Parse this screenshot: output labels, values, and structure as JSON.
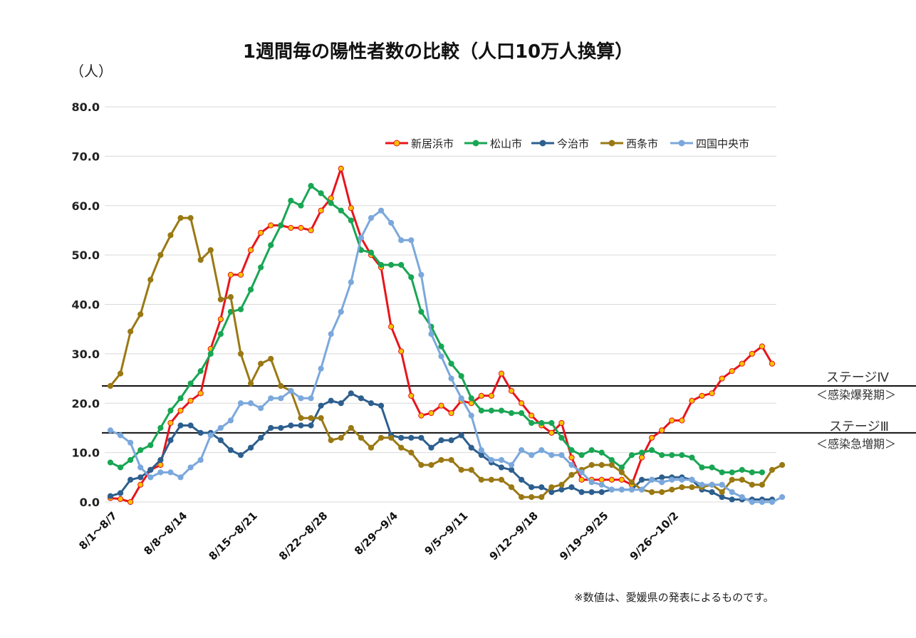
{
  "page": {
    "title": "1週間毎の陽性者数の比較（人口10万人換算）",
    "unit_label": "（人）",
    "footnote": "※数値は、愛媛県の発表によるものです。"
  },
  "stages": [
    {
      "label": "ステージⅣ",
      "sub": "＜感染爆発期＞",
      "value": 23.5
    },
    {
      "label": "ステージⅢ",
      "sub": "＜感染急増期＞",
      "value": 14.0
    }
  ],
  "chart_data": {
    "type": "line",
    "title": "1週間毎の陽性者数の比較（人口10万人換算）",
    "ylabel": "（人）",
    "ylim": [
      0,
      80
    ],
    "yticks": [
      "0.0",
      "10.0",
      "20.0",
      "30.0",
      "40.0",
      "50.0",
      "60.0",
      "70.0",
      "80.0"
    ],
    "x_tick_labels": [
      "8/1～8/7",
      "8/8～8/14",
      "8/15～8/21",
      "8/22～8/28",
      "8/29～9/4",
      "9/5～9/11",
      "9/12～9/18",
      "9/19～9/25",
      "9/26～10/2"
    ],
    "x_tick_indices": [
      0,
      7,
      14,
      21,
      28,
      35,
      42,
      49,
      56
    ],
    "grid": true,
    "legend_position": "top-right",
    "series": [
      {
        "name": "新居浜市",
        "color": "#e8141c",
        "marker_color": "#f5c400",
        "values": [
          0.8,
          0.6,
          0,
          3.5,
          6.5,
          7.5,
          16,
          18.5,
          20.5,
          22,
          31,
          37,
          46,
          46,
          51,
          54.5,
          56,
          56,
          55.5,
          55.5,
          55,
          59,
          61.5,
          67.5,
          59.5,
          53.5,
          50,
          47.5,
          35.5,
          30.5,
          21.5,
          17.5,
          18,
          19.5,
          18,
          20.5,
          20,
          21.5,
          21.5,
          26,
          22.5,
          20,
          17.5,
          15.5,
          14,
          16,
          9,
          4.5,
          4.5,
          4.5,
          4.5,
          4.5,
          3.5,
          9,
          13,
          14.5,
          16.5,
          16.5,
          20.5,
          21.5,
          22,
          25,
          26.5,
          28,
          30,
          31.5,
          28
        ]
      },
      {
        "name": "松山市",
        "color": "#19a654",
        "marker_color": "#19a654",
        "values": [
          8,
          7,
          8.5,
          10.5,
          11.5,
          15,
          18.5,
          21,
          24,
          26.5,
          30,
          34,
          38.5,
          39,
          43,
          47.5,
          52,
          56,
          61,
          60,
          64,
          62.5,
          60.5,
          59,
          57,
          51,
          50.5,
          48,
          48,
          48,
          45.5,
          38.5,
          35.5,
          31.5,
          28,
          25.5,
          21,
          18.5,
          18.5,
          18.5,
          18,
          18,
          16,
          16,
          16,
          13,
          10.5,
          9.5,
          10.5,
          10,
          8.5,
          7,
          9.5,
          10,
          10.5,
          9.5,
          9.5,
          9.5,
          9,
          7,
          7,
          6,
          6,
          6.5,
          6,
          6
        ]
      },
      {
        "name": "今治市",
        "color": "#2d5f8e",
        "marker_color": "#2d5f8e",
        "values": [
          1.2,
          1.8,
          4.5,
          5,
          6.5,
          8.5,
          12.5,
          15.5,
          15.5,
          14,
          14,
          12.5,
          10.5,
          9.5,
          11,
          13,
          15,
          15,
          15.5,
          15.5,
          15.5,
          19.5,
          20.5,
          20,
          22,
          21,
          20,
          19.5,
          13.5,
          13,
          13,
          13,
          11,
          12.5,
          12.5,
          13.5,
          11,
          9.5,
          8,
          7,
          6.5,
          4.5,
          3,
          3,
          2,
          2.5,
          3,
          2,
          2,
          2,
          2.5,
          2.5,
          2.5,
          4.5,
          4.5,
          5,
          5,
          5,
          4.5,
          2.5,
          2,
          1,
          0.5,
          0.5,
          0.5,
          0.5,
          0.5
        ]
      },
      {
        "name": "西条市",
        "color": "#9a7914",
        "marker_color": "#9a7914",
        "values": [
          23.5,
          26,
          34.5,
          38,
          45,
          50,
          54,
          57.5,
          57.5,
          49,
          51,
          41,
          41.5,
          30,
          24,
          28,
          29,
          23.5,
          22.5,
          17,
          17,
          17,
          12.5,
          13,
          15,
          13,
          11,
          13,
          13,
          11,
          10,
          7.5,
          7.5,
          8.5,
          8.5,
          6.5,
          6.5,
          4.5,
          4.5,
          4.5,
          3,
          1,
          1,
          1,
          3,
          3.5,
          5.5,
          6.5,
          7.5,
          7.5,
          7.5,
          6,
          4,
          2.5,
          2,
          2,
          2.5,
          3,
          3,
          3,
          3.5,
          2,
          4.5,
          4.5,
          3.5,
          3.5,
          6.5,
          7.5
        ]
      },
      {
        "name": "四国中央市",
        "color": "#7ba8dc",
        "marker_color": "#7ba8dc",
        "values": [
          14.5,
          13.5,
          12,
          7,
          5,
          6,
          6,
          5,
          7,
          8.5,
          13.5,
          15,
          16.5,
          20,
          20,
          19,
          21,
          21,
          22.5,
          21,
          21,
          27,
          34,
          38.5,
          44.5,
          53.5,
          57.5,
          59,
          56.5,
          53,
          53,
          46,
          34,
          29.5,
          25,
          21,
          17.5,
          10.5,
          8.5,
          8.5,
          7.5,
          10.5,
          9.5,
          10.5,
          9.5,
          9.5,
          7.5,
          6,
          4,
          3.5,
          2.5,
          2.5,
          2.5,
          2.5,
          4.5,
          4,
          4.5,
          4.5,
          4.5,
          3.5,
          3.5,
          3.5,
          2,
          1,
          0,
          0,
          0,
          1
        ]
      }
    ]
  }
}
